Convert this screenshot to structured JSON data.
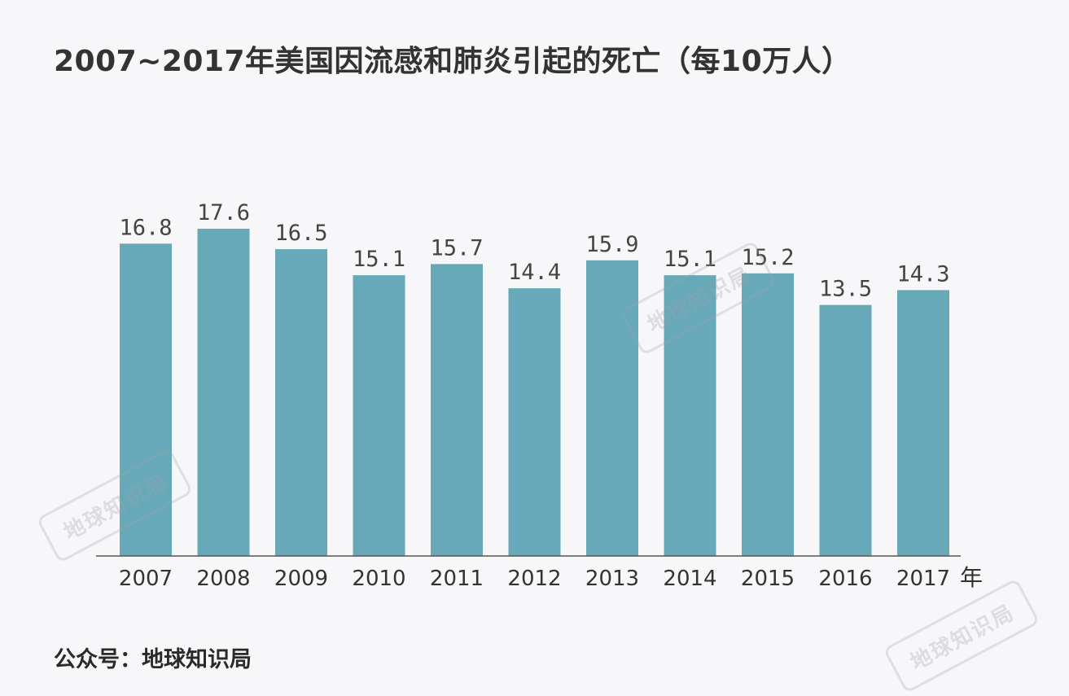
{
  "title": "2007~2017年美国因流感和肺炎引起的死亡（每10万人）",
  "footer": "公众号：地球知识局",
  "watermark": "地球知识局",
  "colors": {
    "bar": "#68a9b9",
    "axis": "#555555"
  },
  "chart_data": {
    "type": "bar",
    "title": "2007~2017年美国因流感和肺炎引起的死亡（每10万人）",
    "categories": [
      "2007",
      "2008",
      "2009",
      "2010",
      "2011",
      "2012",
      "2013",
      "2014",
      "2015",
      "2016",
      "2017"
    ],
    "values": [
      16.8,
      17.6,
      16.5,
      15.1,
      15.7,
      14.4,
      15.9,
      15.1,
      15.2,
      13.5,
      14.3
    ],
    "data_labels": [
      "16.8",
      "17.6",
      "16.5",
      "15.1",
      "15.7",
      "14.4",
      "15.9",
      "15.1",
      "15.2",
      "13.5",
      "14.3"
    ],
    "x_unit": "年",
    "ylabel": "",
    "ylim": [
      0,
      17.6
    ],
    "grid": false,
    "legend": "none"
  }
}
